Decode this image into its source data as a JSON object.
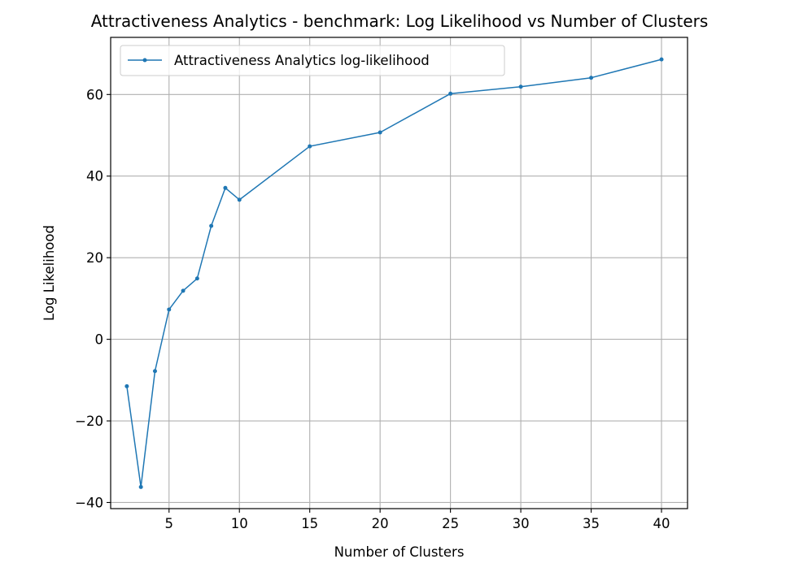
{
  "chart_data": {
    "type": "line",
    "title": "Attractiveness Analytics - benchmark: Log Likelihood vs Number of Clusters",
    "xlabel": "Number of Clusters",
    "ylabel": "Log Likelihood",
    "xlim": [
      0.85,
      41.85
    ],
    "ylim": [
      -41.5,
      74
    ],
    "xticks": [
      5,
      10,
      15,
      20,
      25,
      30,
      35,
      40
    ],
    "yticks": [
      -40,
      -20,
      0,
      20,
      40,
      60
    ],
    "grid": true,
    "legend_position": "upper-left",
    "series": [
      {
        "name": "Attractiveness Analytics log-likelihood",
        "color": "#1f77b4",
        "marker": "circle",
        "x": [
          2,
          3,
          4,
          5,
          6,
          7,
          8,
          9,
          10,
          15,
          20,
          25,
          30,
          35,
          40
        ],
        "y": [
          -11.5,
          -36.2,
          -7.8,
          7.3,
          11.9,
          14.9,
          27.8,
          37.1,
          34.2,
          47.3,
          50.7,
          60.2,
          61.9,
          64.1,
          68.6
        ]
      }
    ]
  }
}
